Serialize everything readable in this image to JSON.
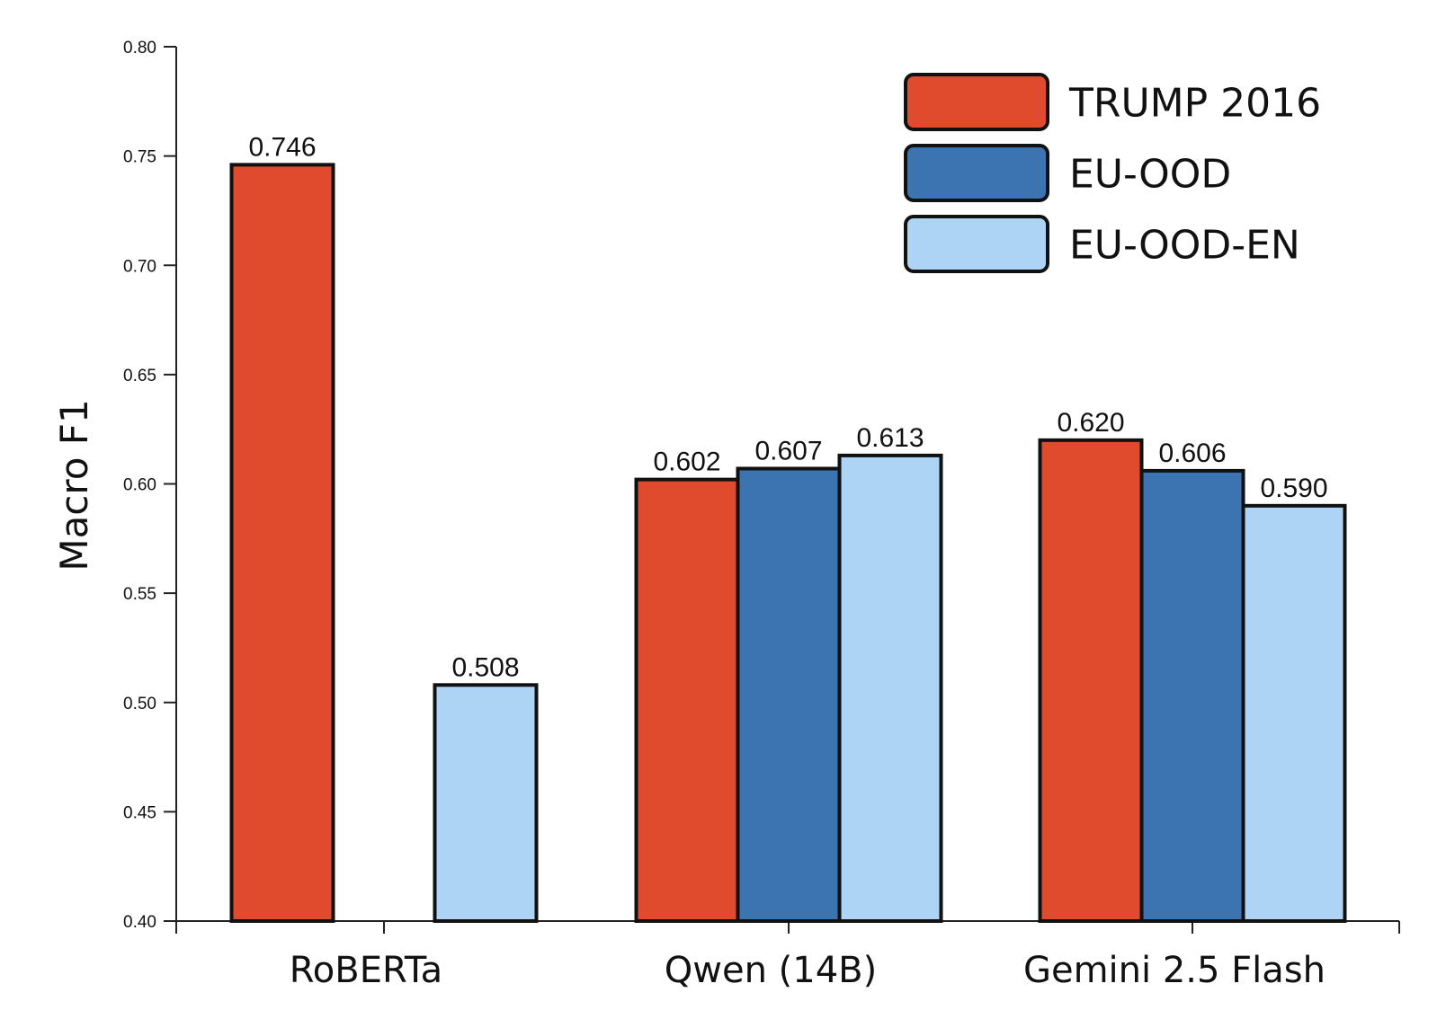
{
  "chart_data": {
    "type": "bar",
    "categories": [
      "RoBERTa",
      "Qwen (14B)",
      "Gemini 2.5 Flash"
    ],
    "series": [
      {
        "name": "TRUMP 2016",
        "color": "#e04a2d",
        "values": [
          0.746,
          0.602,
          0.62
        ]
      },
      {
        "name": "EU-OOD",
        "color": "#3b74b0",
        "values": [
          null,
          0.607,
          0.606
        ]
      },
      {
        "name": "EU-OOD-EN",
        "color": "#add4f4",
        "values": [
          0.508,
          0.613,
          0.59
        ]
      }
    ],
    "value_labels": [
      [
        "0.746",
        null,
        "0.508"
      ],
      [
        "0.602",
        "0.607",
        "0.613"
      ],
      [
        "0.620",
        "0.606",
        "0.590"
      ]
    ],
    "title": "",
    "xlabel": "",
    "ylabel": "Macro F1",
    "ylim": [
      0.4,
      0.8
    ],
    "yticks": [
      "0.40",
      "0.45",
      "0.50",
      "0.55",
      "0.60",
      "0.65",
      "0.70",
      "0.75",
      "0.80"
    ],
    "grid": false,
    "legend_position": "top-right"
  }
}
